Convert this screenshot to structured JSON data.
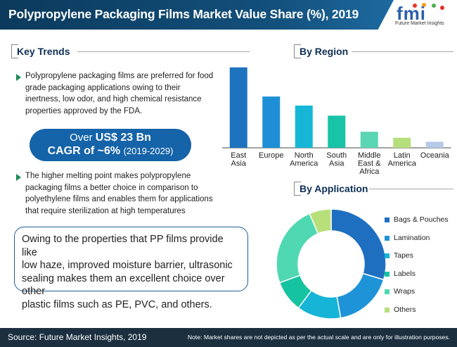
{
  "header": {
    "title": "Polypropylene Packaging Films Market Value Share (%), 2019",
    "logo_text": "fmi",
    "logo_tagline": "Future Market Insights"
  },
  "key_trends": {
    "heading": "Key Trends",
    "bullet1": [
      "Polypropylene packaging films are preferred for food",
      "grade packaging applications owing to their",
      "inertness, low odor, and high chemical resistance",
      "properties approved by the FDA."
    ],
    "bullet2": [
      "The higher melting point makes polypropylene",
      "packaging films a better choice in comparison to",
      "polyethylene films and enables them for applications",
      "that require sterilization at high temperatures"
    ],
    "stat_prefix": "Over",
    "stat_value": "US$ 23 Bn",
    "cagr": "CAGR of ~6%",
    "cagr_period": "(2019-2029)"
  },
  "note_box": [
    "Owing to the properties that PP films provide like",
    "low haze, improved moisture barrier, ultrasonic",
    "sealing makes them an excellent choice over other",
    "plastic films such as PE, PVC, and others."
  ],
  "footer": {
    "source": "Source: Future Market Insights, 2019",
    "note": "Note: Market shares are not depicted as per the actual scale and are only for illustration purposes."
  },
  "colors": {
    "header_navy": "#0b3a5c",
    "accent_blue": "#1563a8",
    "arrow_green": "#1a8a53",
    "footer_bg": "#1c2f3f"
  },
  "chart_data": [
    {
      "type": "bar",
      "title": "By Region",
      "categories": [
        [
          "East",
          "Asia"
        ],
        [
          "Europe"
        ],
        [
          "North",
          "America"
        ],
        [
          "South",
          "Asia"
        ],
        [
          "Middle",
          "East &",
          "Africa"
        ],
        [
          "Latin",
          "America"
        ],
        [
          "Oceania"
        ]
      ],
      "values": [
        40,
        25.5,
        21,
        16,
        8,
        5,
        3
      ],
      "colors": [
        "#1e73be",
        "#1e8fd6",
        "#16b7d6",
        "#19c3a8",
        "#5bd6b5",
        "#b5df7a",
        "#b5c9e8"
      ],
      "ylim": [
        0,
        42
      ]
    },
    {
      "type": "pie",
      "title": "By Application",
      "donut": true,
      "labels": [
        "Bags & Pouches",
        "Lamination",
        "Tapes",
        "Labels",
        "Wraps",
        "Others"
      ],
      "values": [
        32,
        19,
        14,
        10,
        26,
        7
      ],
      "colors": [
        "#1f6fc0",
        "#1e93d8",
        "#16b4d6",
        "#15c3a0",
        "#4fd8b2",
        "#b8e07a"
      ]
    }
  ]
}
